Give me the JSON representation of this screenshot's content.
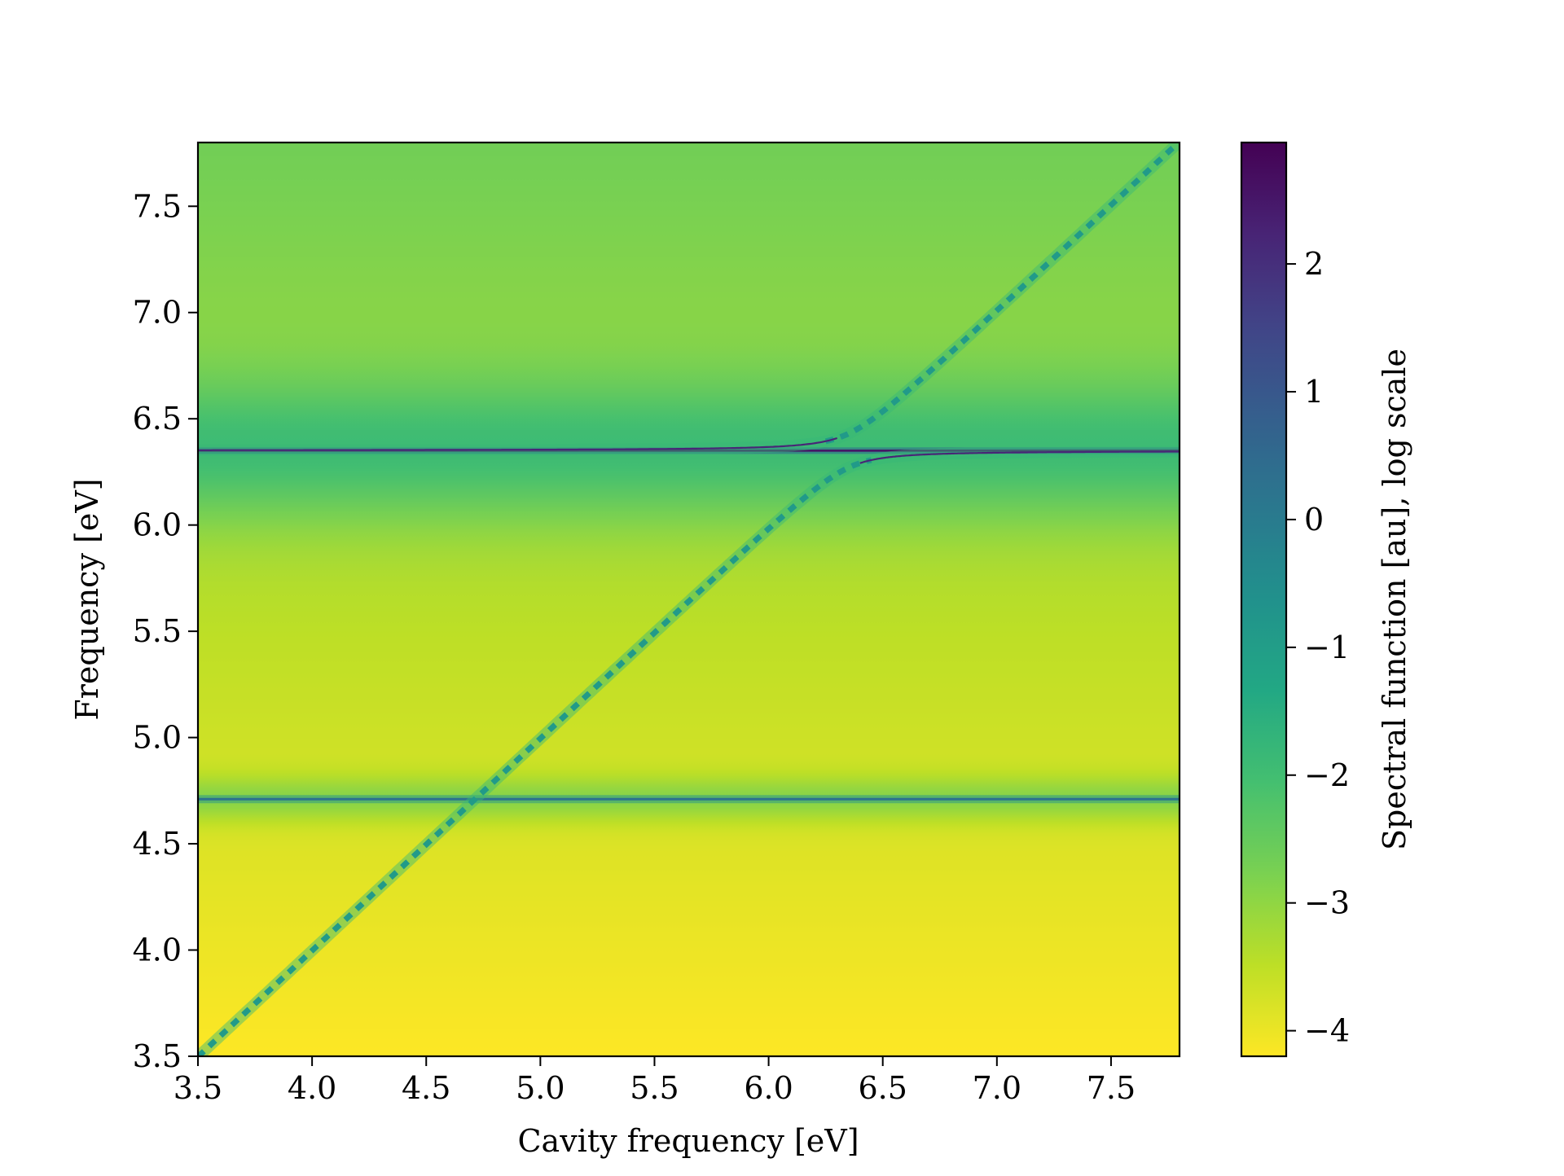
{
  "chart_data": {
    "type": "heatmap",
    "title": "",
    "xlabel": "Cavity frequency [eV]",
    "ylabel": "Frequency [eV]",
    "xlim": [
      3.5,
      7.8
    ],
    "ylim": [
      3.5,
      7.8
    ],
    "x_ticks": [
      3.5,
      4.0,
      4.5,
      5.0,
      5.5,
      6.0,
      6.5,
      7.0,
      7.5
    ],
    "x_tick_labels": [
      "3.5",
      "4.0",
      "4.5",
      "5.0",
      "5.5",
      "6.0",
      "6.5",
      "7.0",
      "7.5"
    ],
    "y_ticks": [
      3.5,
      4.0,
      4.5,
      5.0,
      5.5,
      6.0,
      6.5,
      7.0,
      7.5
    ],
    "y_tick_labels": [
      "3.5",
      "4.0",
      "4.5",
      "5.0",
      "5.5",
      "6.0",
      "6.5",
      "7.0",
      "7.5"
    ],
    "colormap": "viridis_r",
    "colorbar": {
      "label": "Spectral function [au], log scale",
      "range": [
        -4.2,
        2.95
      ],
      "ticks": [
        -4,
        -3,
        -2,
        -1,
        0,
        1,
        2
      ],
      "tick_labels": [
        "−4",
        "−3",
        "−2",
        "−1",
        "0",
        "1",
        "2"
      ]
    },
    "features": {
      "resonances_eV": [
        4.71,
        6.35
      ],
      "diagonal_mode": "frequency = cavity frequency",
      "coupling_eV": 0.08
    }
  }
}
